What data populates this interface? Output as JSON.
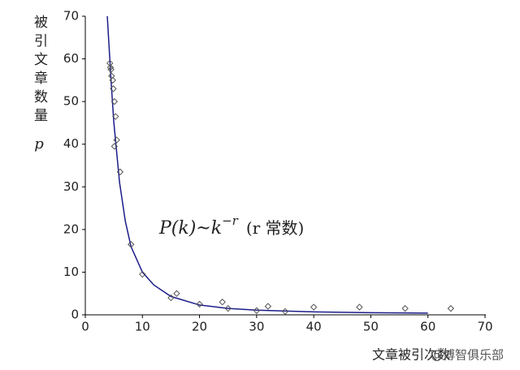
{
  "chart_data": {
    "type": "scatter",
    "ylabel": "被引文章数量",
    "ylabel_symbol": "p",
    "xlabel": "文章被引次数",
    "watermark": "@博智俱乐部",
    "annotation": {
      "left": "P(k)~k",
      "exponent": "−r",
      "right": "(r 常数)"
    },
    "xlim": [
      0,
      70
    ],
    "ylim": [
      0,
      70
    ],
    "xticks": [
      0,
      10,
      20,
      30,
      40,
      50,
      60,
      70
    ],
    "yticks": [
      0,
      10,
      20,
      30,
      40,
      50,
      60,
      70
    ],
    "grid": false,
    "series": [
      {
        "type": "line",
        "color": "#1c1c8a",
        "x": [
          3.85,
          4.2,
          4.5,
          5,
          6,
          7,
          8,
          10,
          12,
          15,
          20,
          25,
          30,
          40,
          50,
          60
        ],
        "values": [
          70,
          62,
          55,
          45,
          31,
          22,
          16,
          10,
          7,
          4.3,
          2.3,
          1.5,
          1.1,
          0.7,
          0.5,
          0.4
        ]
      },
      {
        "type": "scatter",
        "color": "#555555",
        "x": [
          4.3,
          4.4,
          4.5,
          4.6,
          4.8,
          4.9,
          5.1,
          5.3,
          5.5,
          5.1,
          6.1,
          8,
          10,
          15,
          16,
          20,
          24,
          25,
          30,
          32,
          35,
          40,
          48,
          56,
          64
        ],
        "values": [
          59,
          58,
          57.5,
          56,
          55,
          53,
          50,
          46.5,
          41,
          39.5,
          33.5,
          16.5,
          9.5,
          4,
          5,
          2.5,
          3,
          1.5,
          1,
          2,
          0.8,
          1.8,
          1.8,
          1.5,
          1.5
        ]
      }
    ]
  }
}
